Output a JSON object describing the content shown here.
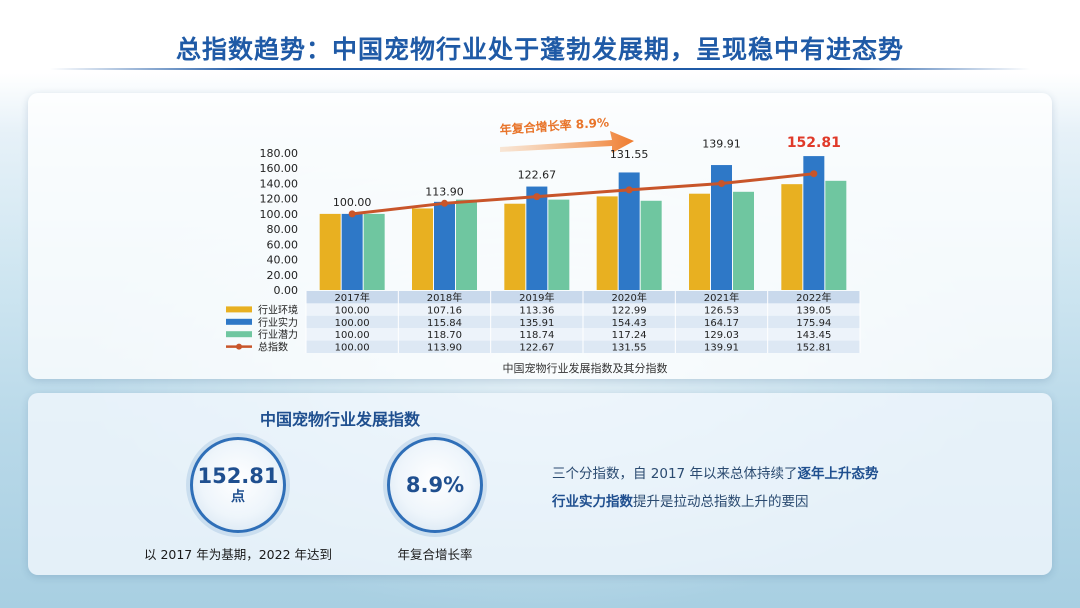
{
  "page": {
    "title": "总指数趋势：中国宠物行业处于蓬勃发展期，呈现稳中有进态势"
  },
  "chart_data": {
    "type": "bar",
    "title": "",
    "caption": "中国宠物行业发展指数及其分指数",
    "categories": [
      "2017年",
      "2018年",
      "2019年",
      "2020年",
      "2021年",
      "2022年"
    ],
    "ylim": [
      0,
      180
    ],
    "yticks": [
      "0.00",
      "20.00",
      "40.00",
      "60.00",
      "80.00",
      "100.00",
      "120.00",
      "140.00",
      "160.00",
      "180.00"
    ],
    "series": [
      {
        "name": "行业环境",
        "kind": "bar",
        "color": "#e8b021",
        "values": [
          100.0,
          107.16,
          113.36,
          122.99,
          126.53,
          139.05
        ],
        "labels": [
          "100.00",
          "107.16",
          "113.36",
          "122.99",
          "126.53",
          "139.05"
        ]
      },
      {
        "name": "行业实力",
        "kind": "bar",
        "color": "#2e78c7",
        "values": [
          100.0,
          115.84,
          135.91,
          154.43,
          164.17,
          175.94
        ],
        "labels": [
          "100.00",
          "115.84",
          "135.91",
          "154.43",
          "164.17",
          "175.94"
        ]
      },
      {
        "name": "行业潜力",
        "kind": "bar",
        "color": "#6fc6a0",
        "values": [
          100.0,
          118.7,
          118.74,
          117.24,
          129.03,
          143.45
        ],
        "labels": [
          "100.00",
          "118.70",
          "118.74",
          "117.24",
          "129.03",
          "143.45"
        ]
      },
      {
        "name": "总指数",
        "kind": "line",
        "color": "#c8552a",
        "values": [
          100.0,
          113.9,
          122.67,
          131.55,
          139.91,
          152.81
        ],
        "labels": [
          "100.00",
          "113.90",
          "122.67",
          "131.55",
          "139.91",
          "152.81"
        ]
      }
    ],
    "annotation": "年复合增长率 8.9%",
    "highlight_color": "#e03a2a"
  },
  "kpi": {
    "title": "中国宠物行业发展指数",
    "index_value": "152.81",
    "index_unit": "点",
    "index_label": "以 2017 年为基期，2022 年达到",
    "cagr_value": "8.9%",
    "cagr_label": "年复合增长率"
  },
  "description": {
    "line1_plain": "三个分指数，自 2017 年以来总体持续了",
    "line1_highlight": "逐年上升态势",
    "line2_highlight": "行业实力指数",
    "line2_plain": "提升是拉动总指数上升的要因"
  }
}
